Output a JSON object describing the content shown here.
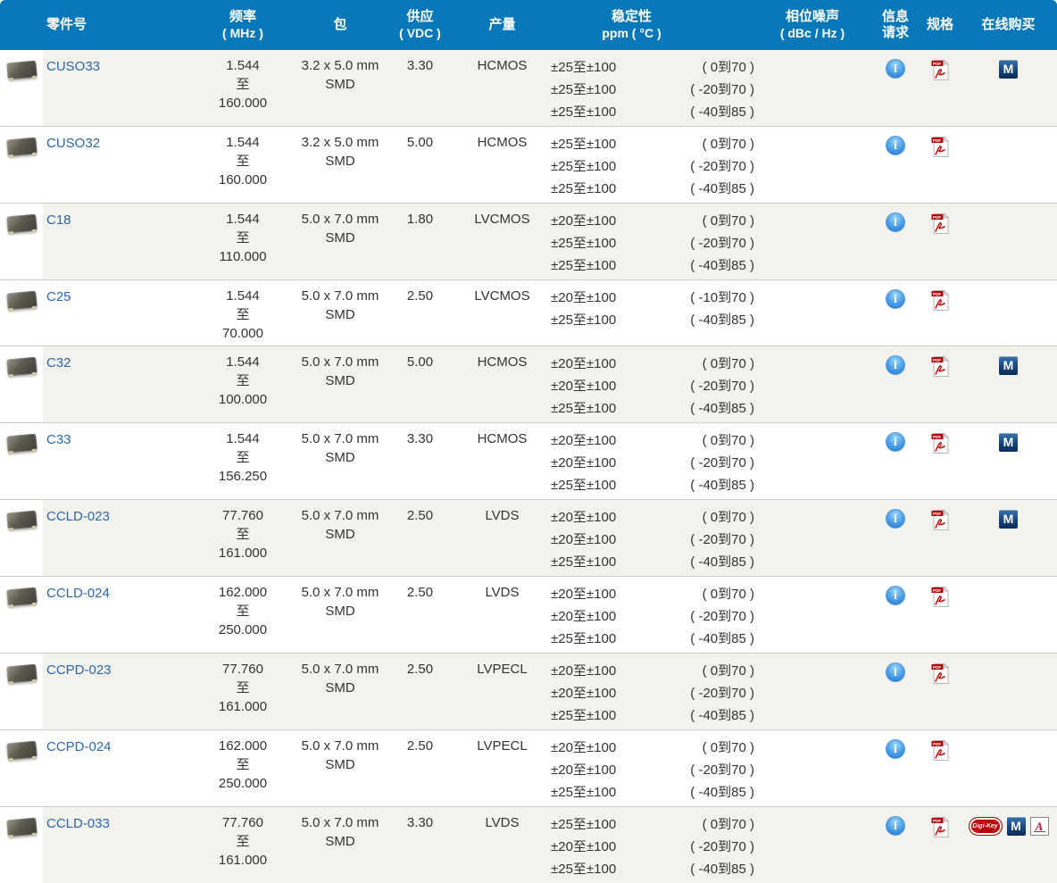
{
  "colors": {
    "header_blue": "#0878b9",
    "row_alt_beige": "#f4f2ed",
    "row_white": "#ffffff",
    "separator": "#cccccc",
    "link_blue": "#2b67ad",
    "pdf_red": "#b3000c",
    "mouser_navy": "#16467e",
    "digikey_red": "#c00000",
    "arrow_red": "#c41230",
    "info_blue": "#1f72cf"
  },
  "table": {
    "columns": {
      "part": "零件号",
      "frequency": [
        "频率",
        "( MHz )"
      ],
      "package": "包",
      "supply": [
        "供应",
        "( VDC )"
      ],
      "output": "产量",
      "stability": [
        "稳定性",
        "ppm ( °C )"
      ],
      "phase_noise": [
        "相位噪声",
        "( dBc / Hz )"
      ],
      "info_request": [
        "信息",
        "请求"
      ],
      "specs": "规格",
      "buy_online": "在线购买"
    },
    "freq_separator": "至",
    "icon_labels": {
      "info": "i",
      "pdf": "PDF",
      "mouser": "M",
      "digikey": "Digi-Key",
      "arrow": "A"
    },
    "rows": [
      {
        "part": "CUSO33",
        "freq_min": "1.544",
        "freq_max": "160.000",
        "pkg_size": "3.2 x 5.0 mm",
        "pkg_type": "SMD",
        "supply": "3.30",
        "output": "HCMOS",
        "phase_noise": "",
        "stability": [
          {
            "ppm": "±25至±100",
            "temp": "( 0到70 )"
          },
          {
            "ppm": "±25至±100",
            "temp": "( -20到70 )"
          },
          {
            "ppm": "±25至±100",
            "temp": "( -40到85 )"
          }
        ],
        "info": true,
        "pdf": true,
        "buy": [
          "mouser"
        ]
      },
      {
        "part": "CUSO32",
        "freq_min": "1.544",
        "freq_max": "160.000",
        "pkg_size": "3.2 x 5.0 mm",
        "pkg_type": "SMD",
        "supply": "5.00",
        "output": "HCMOS",
        "phase_noise": "",
        "stability": [
          {
            "ppm": "±25至±100",
            "temp": "( 0到70 )"
          },
          {
            "ppm": "±25至±100",
            "temp": "( -20到70 )"
          },
          {
            "ppm": "±25至±100",
            "temp": "( -40到85 )"
          }
        ],
        "info": true,
        "pdf": true,
        "buy": []
      },
      {
        "part": "C18",
        "freq_min": "1.544",
        "freq_max": "110.000",
        "pkg_size": "5.0 x 7.0 mm",
        "pkg_type": "SMD",
        "supply": "1.80",
        "output": "LVCMOS",
        "phase_noise": "",
        "stability": [
          {
            "ppm": "±20至±100",
            "temp": "( 0到70 )"
          },
          {
            "ppm": "±25至±100",
            "temp": "( -20到70 )"
          },
          {
            "ppm": "±25至±100",
            "temp": "( -40到85 )"
          }
        ],
        "info": true,
        "pdf": true,
        "buy": []
      },
      {
        "part": "C25",
        "freq_min": "1.544",
        "freq_max": "70.000",
        "pkg_size": "5.0 x 7.0 mm",
        "pkg_type": "SMD",
        "supply": "2.50",
        "output": "LVCMOS",
        "phase_noise": "",
        "stability": [
          {
            "ppm": "±20至±100",
            "temp": "( -10到70 )"
          },
          {
            "ppm": "±25至±100",
            "temp": "( -40到85 )"
          }
        ],
        "info": true,
        "pdf": true,
        "buy": []
      },
      {
        "part": "C32",
        "freq_min": "1.544",
        "freq_max": "100.000",
        "pkg_size": "5.0 x 7.0 mm",
        "pkg_type": "SMD",
        "supply": "5.00",
        "output": "HCMOS",
        "phase_noise": "",
        "stability": [
          {
            "ppm": "±20至±100",
            "temp": "( 0到70 )"
          },
          {
            "ppm": "±20至±100",
            "temp": "( -20到70 )"
          },
          {
            "ppm": "±25至±100",
            "temp": "( -40到85 )"
          }
        ],
        "info": true,
        "pdf": true,
        "buy": [
          "mouser"
        ]
      },
      {
        "part": "C33",
        "freq_min": "1.544",
        "freq_max": "156.250",
        "pkg_size": "5.0 x 7.0 mm",
        "pkg_type": "SMD",
        "supply": "3.30",
        "output": "HCMOS",
        "phase_noise": "",
        "stability": [
          {
            "ppm": "±20至±100",
            "temp": "( 0到70 )"
          },
          {
            "ppm": "±20至±100",
            "temp": "( -20到70 )"
          },
          {
            "ppm": "±25至±100",
            "temp": "( -40到85 )"
          }
        ],
        "info": true,
        "pdf": true,
        "buy": [
          "mouser"
        ]
      },
      {
        "part": "CCLD-023",
        "freq_min": "77.760",
        "freq_max": "161.000",
        "pkg_size": "5.0 x 7.0 mm",
        "pkg_type": "SMD",
        "supply": "2.50",
        "output": "LVDS",
        "phase_noise": "",
        "stability": [
          {
            "ppm": "±20至±100",
            "temp": "( 0到70 )"
          },
          {
            "ppm": "±20至±100",
            "temp": "( -20到70 )"
          },
          {
            "ppm": "±25至±100",
            "temp": "( -40到85 )"
          }
        ],
        "info": true,
        "pdf": true,
        "buy": [
          "mouser"
        ]
      },
      {
        "part": "CCLD-024",
        "freq_min": "162.000",
        "freq_max": "250.000",
        "pkg_size": "5.0 x 7.0 mm",
        "pkg_type": "SMD",
        "supply": "2.50",
        "output": "LVDS",
        "phase_noise": "",
        "stability": [
          {
            "ppm": "±20至±100",
            "temp": "( 0到70 )"
          },
          {
            "ppm": "±20至±100",
            "temp": "( -20到70 )"
          },
          {
            "ppm": "±25至±100",
            "temp": "( -40到85 )"
          }
        ],
        "info": true,
        "pdf": true,
        "buy": []
      },
      {
        "part": "CCPD-023",
        "freq_min": "77.760",
        "freq_max": "161.000",
        "pkg_size": "5.0 x 7.0 mm",
        "pkg_type": "SMD",
        "supply": "2.50",
        "output": "LVPECL",
        "phase_noise": "",
        "stability": [
          {
            "ppm": "±20至±100",
            "temp": "( 0到70 )"
          },
          {
            "ppm": "±20至±100",
            "temp": "( -20到70 )"
          },
          {
            "ppm": "±25至±100",
            "temp": "( -40到85 )"
          }
        ],
        "info": true,
        "pdf": true,
        "buy": []
      },
      {
        "part": "CCPD-024",
        "freq_min": "162.000",
        "freq_max": "250.000",
        "pkg_size": "5.0 x 7.0 mm",
        "pkg_type": "SMD",
        "supply": "2.50",
        "output": "LVPECL",
        "phase_noise": "",
        "stability": [
          {
            "ppm": "±20至±100",
            "temp": "( 0到70 )"
          },
          {
            "ppm": "±20至±100",
            "temp": "( -20到70 )"
          },
          {
            "ppm": "±25至±100",
            "temp": "( -40到85 )"
          }
        ],
        "info": true,
        "pdf": true,
        "buy": []
      },
      {
        "part": "CCLD-033",
        "freq_min": "77.760",
        "freq_max": "161.000",
        "pkg_size": "5.0 x 7.0 mm",
        "pkg_type": "SMD",
        "supply": "3.30",
        "output": "LVDS",
        "phase_noise": "",
        "stability": [
          {
            "ppm": "±25至±100",
            "temp": "( 0到70 )"
          },
          {
            "ppm": "±20至±100",
            "temp": "( -20到70 )"
          },
          {
            "ppm": "±25至±100",
            "temp": "( -40到85 )"
          }
        ],
        "info": true,
        "pdf": true,
        "buy": [
          "digikey",
          "mouser",
          "arrow"
        ]
      }
    ]
  }
}
